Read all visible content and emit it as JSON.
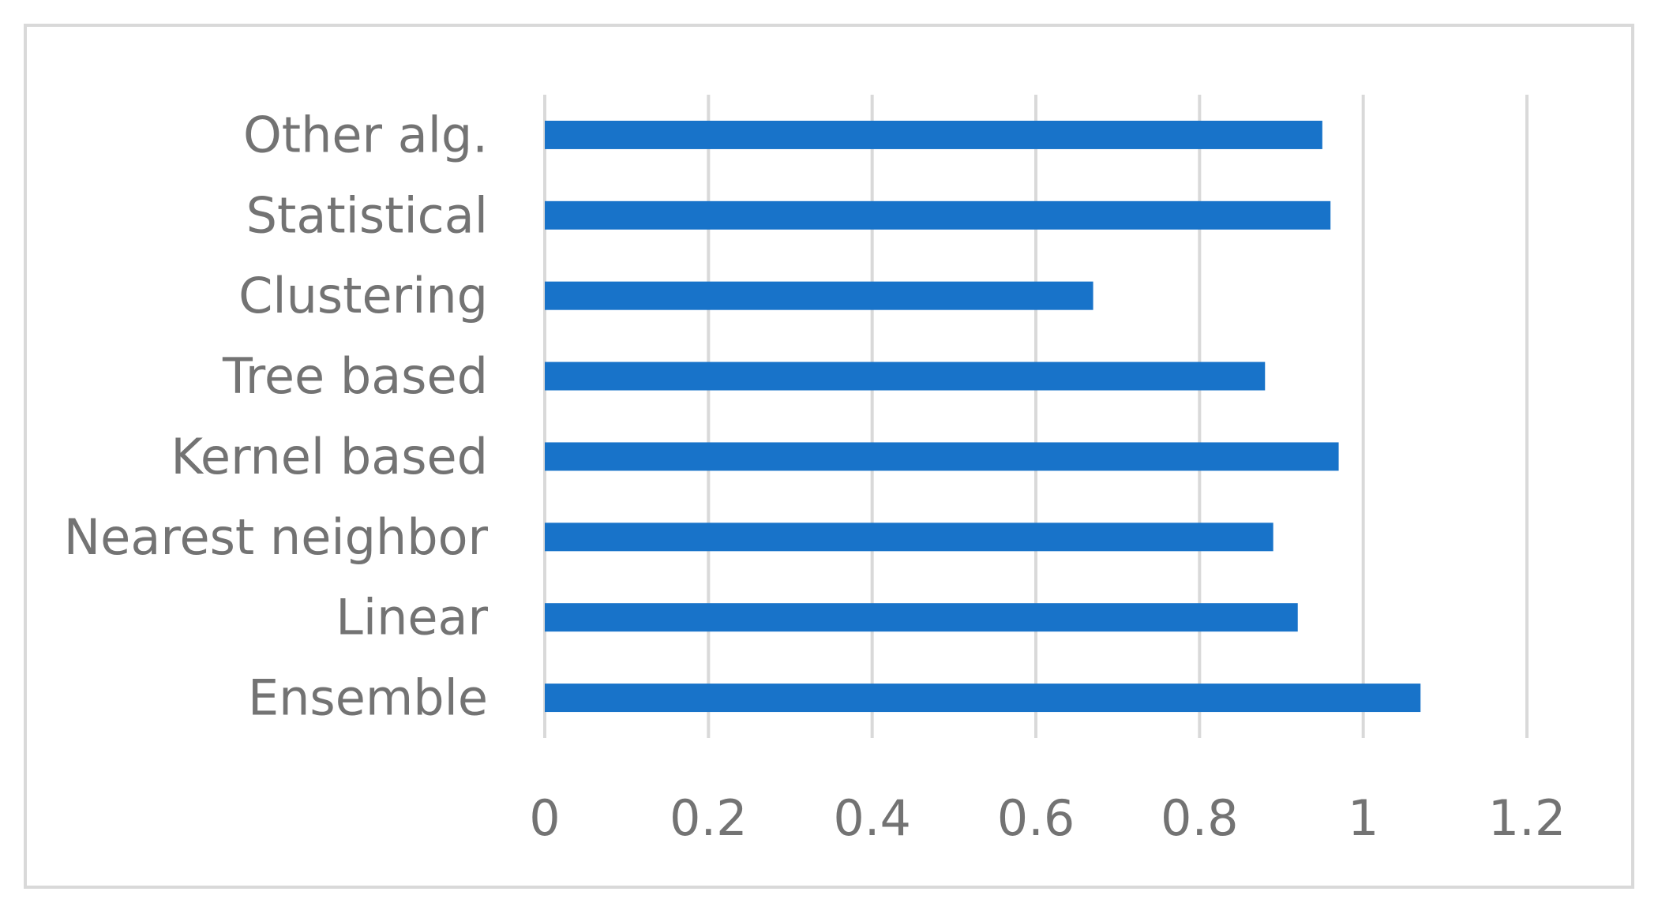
{
  "chart_data": {
    "type": "bar",
    "orientation": "horizontal",
    "categories": [
      "Ensemble",
      "Linear",
      "Nearest neighbor",
      "Kernel based",
      "Tree based",
      "Clustering",
      "Statistical",
      "Other alg."
    ],
    "values": [
      1.07,
      0.92,
      0.89,
      0.97,
      0.88,
      0.67,
      0.96,
      0.95
    ],
    "xticks": [
      "0",
      "0.2",
      "0.4",
      "0.6",
      "0.8",
      "1",
      "1.2"
    ],
    "xlim": [
      0,
      1.2
    ],
    "title": "",
    "xlabel": "",
    "ylabel": "",
    "grid": "vertical",
    "legend": "none",
    "colors": {
      "bar": "#1873c9",
      "grid": "#d9d9d9",
      "text": "#737373",
      "frame": "#d9d9d9"
    }
  }
}
